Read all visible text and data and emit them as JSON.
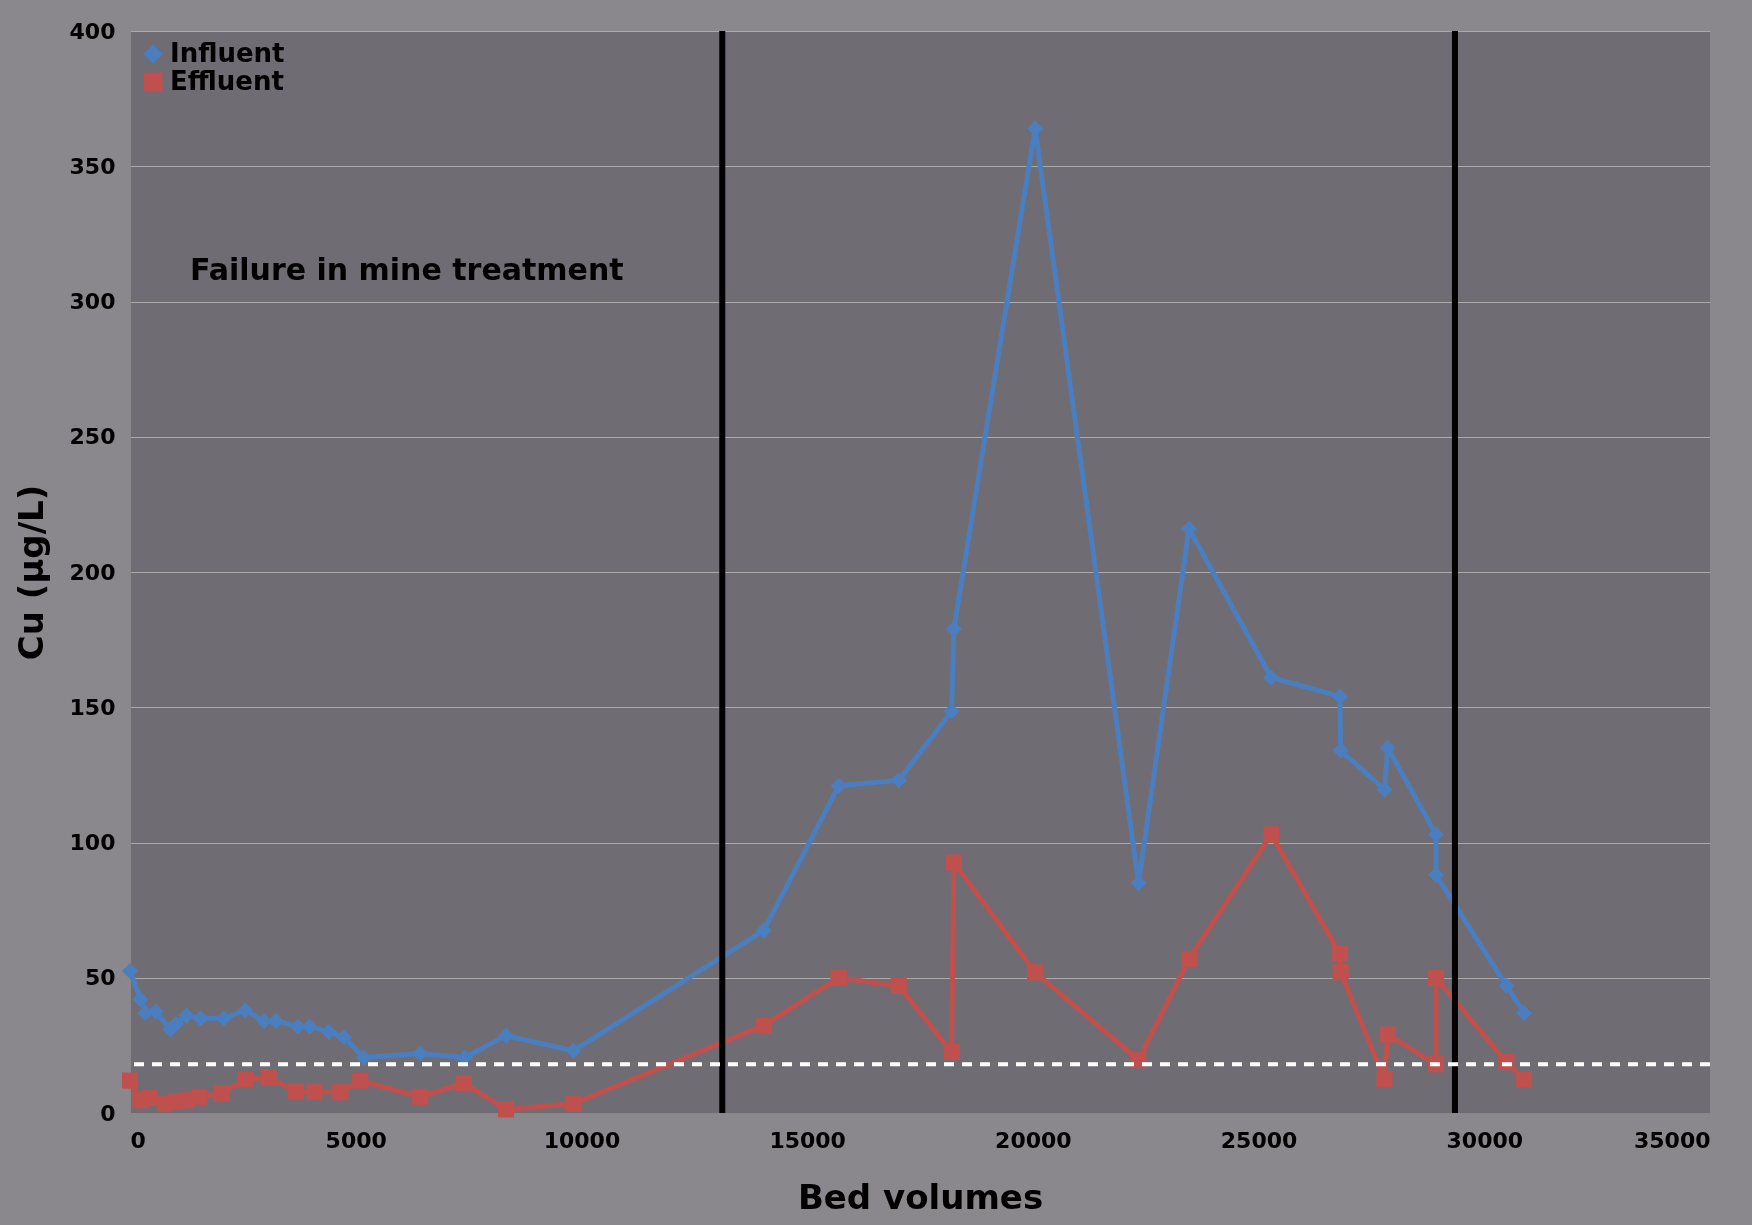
{
  "chart_data": {
    "type": "line",
    "xlabel": "Bed volumes",
    "ylabel": "Cu (µg/L)",
    "annotations": [
      "Failure in mine treatment"
    ],
    "xlim": [
      0,
      35000
    ],
    "xticks": [
      0,
      5000,
      10000,
      15000,
      20000,
      25000,
      30000,
      35000
    ],
    "ylim": [
      0,
      400
    ],
    "yticks": [
      0,
      50,
      100,
      150,
      200,
      250,
      300,
      350,
      400
    ],
    "grid": "y",
    "legend": "left",
    "line_style": "solid",
    "series": [
      {
        "name": "Influent",
        "color": "#4a7ebf",
        "marker": "diamond",
        "x": [
          0,
          230,
          340,
          570,
          890,
          1020,
          1250,
          1560,
          2080,
          2550,
          2970,
          3230,
          3720,
          3980,
          4400,
          4740,
          5180,
          6430,
          7420,
          8330,
          9820,
          14040,
          15700,
          17030,
          18200,
          18250,
          20050,
          22340,
          23460,
          25280,
          26800,
          26820,
          27790,
          27860,
          28930,
          28930,
          30490,
          30880
        ],
        "values": [
          52.5,
          42,
          37,
          37.5,
          31,
          33,
          36,
          35,
          35,
          38,
          34,
          34,
          32,
          32,
          30,
          28,
          20.5,
          22,
          20.5,
          28.6,
          23,
          67.5,
          121,
          123,
          148.5,
          179,
          364,
          85,
          216,
          161,
          154,
          134,
          119.5,
          135,
          103,
          88,
          47,
          37
        ]
      },
      {
        "name": "Effluent",
        "color": "#c0504d",
        "marker": "square",
        "x": [
          0,
          230,
          420,
          780,
          1020,
          1250,
          1540,
          2030,
          2550,
          3070,
          3670,
          4090,
          4660,
          5100,
          6430,
          7390,
          8330,
          9820,
          14040,
          15700,
          17030,
          18200,
          18250,
          20050,
          22340,
          23460,
          25280,
          26800,
          26820,
          27790,
          27860,
          28930,
          28930,
          30490,
          30880
        ],
        "values": [
          12,
          4.7,
          5.5,
          3.4,
          4.3,
          4.7,
          6,
          7.3,
          12.4,
          13.2,
          8,
          8,
          7.7,
          12,
          6,
          11,
          1.3,
          3.4,
          32.4,
          50,
          47,
          22.6,
          92.6,
          52,
          19.6,
          57,
          103,
          59,
          52,
          12.4,
          29,
          18,
          50,
          18.8,
          12.4
        ]
      }
    ],
    "ref_lines": [
      {
        "axis": "x",
        "value": 13120,
        "color": "#000000",
        "line_style": "solid"
      },
      {
        "axis": "x",
        "value": 29350,
        "color": "#000000",
        "line_style": "solid"
      },
      {
        "axis": "y",
        "value": 18,
        "color": "#ffffff",
        "line_style": "dashed"
      }
    ]
  }
}
